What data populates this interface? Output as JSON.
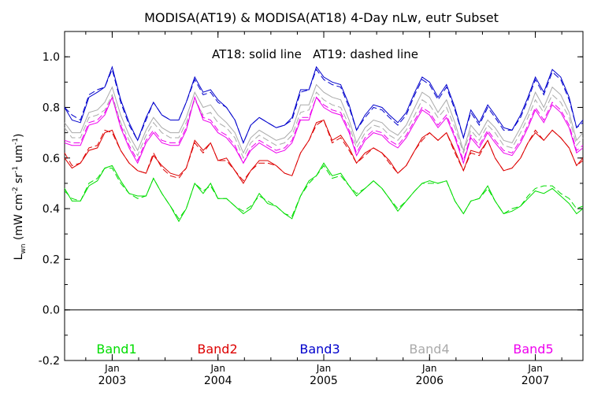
{
  "chart_data": {
    "type": "line",
    "title": "MODISA(AT19) & MODISA(AT18) 4-Day nLw, eutr Subset",
    "annotation": "AT18: solid line   AT19: dashed line",
    "ylabel": "L",
    "ylabel_sub": "wn",
    "ylabel_units": "(mW cm",
    "ylabel_units_2": "sr",
    "ylabel_units_3": "um",
    "ylabel_units_end": ")",
    "ylabel_exp": "-2",
    "ylabel_exp_2": "-1",
    "ylabel_exp_3": "-1",
    "ylim": [
      -0.2,
      1.1
    ],
    "yticks": [
      "-0.2",
      "0.0",
      "0.2",
      "0.4",
      "0.6",
      "0.8",
      "1.0"
    ],
    "xrange": [
      2002.55,
      2007.45
    ],
    "xticks": [
      {
        "x": 2003.0,
        "month": "Jan",
        "year": "2003"
      },
      {
        "x": 2004.0,
        "month": "Jan",
        "year": "2004"
      },
      {
        "x": 2005.0,
        "month": "Jan",
        "year": "2005"
      },
      {
        "x": 2006.0,
        "month": "Jan",
        "year": "2006"
      },
      {
        "x": 2007.0,
        "month": "Jan",
        "year": "2007"
      }
    ],
    "reference_line_y": 0.0,
    "x": [
      2002.55,
      2002.62,
      2002.7,
      2002.78,
      2002.86,
      2002.93,
      2003.0,
      2003.08,
      2003.16,
      2003.24,
      2003.32,
      2003.39,
      2003.47,
      2003.55,
      2003.63,
      2003.7,
      2003.78,
      2003.86,
      2003.93,
      2004.0,
      2004.08,
      2004.16,
      2004.24,
      2004.31,
      2004.39,
      2004.47,
      2004.55,
      2004.63,
      2004.7,
      2004.78,
      2004.86,
      2004.93,
      2005.0,
      2005.08,
      2005.16,
      2005.24,
      2005.31,
      2005.39,
      2005.47,
      2005.55,
      2005.62,
      2005.7,
      2005.78,
      2005.86,
      2005.93,
      2006.0,
      2006.08,
      2006.16,
      2006.24,
      2006.32,
      2006.39,
      2006.47,
      2006.55,
      2006.62,
      2006.7,
      2006.78,
      2006.86,
      2006.93,
      2007.0,
      2007.08,
      2007.16,
      2007.24,
      2007.32,
      2007.39,
      2007.45
    ],
    "series": [
      {
        "name": "Band1",
        "color": "#00dd00",
        "at18": [
          0.48,
          0.43,
          0.43,
          0.49,
          0.51,
          0.56,
          0.57,
          0.51,
          0.46,
          0.45,
          0.45,
          0.52,
          0.46,
          0.41,
          0.35,
          0.4,
          0.5,
          0.46,
          0.5,
          0.44,
          0.44,
          0.41,
          0.38,
          0.4,
          0.46,
          0.42,
          0.41,
          0.38,
          0.36,
          0.45,
          0.51,
          0.53,
          0.58,
          0.53,
          0.54,
          0.49,
          0.45,
          0.48,
          0.51,
          0.48,
          0.44,
          0.39,
          0.43,
          0.47,
          0.5,
          0.51,
          0.5,
          0.51,
          0.43,
          0.38,
          0.43,
          0.44,
          0.49,
          0.43,
          0.38,
          0.39,
          0.41,
          0.44,
          0.47,
          0.46,
          0.48,
          0.45,
          0.42,
          0.38,
          0.4
        ],
        "at19": [
          0.47,
          0.44,
          0.43,
          0.5,
          0.52,
          0.56,
          0.56,
          0.5,
          0.46,
          0.44,
          0.45,
          0.52,
          0.46,
          0.41,
          0.36,
          0.4,
          0.5,
          0.47,
          0.49,
          0.44,
          0.44,
          0.41,
          0.39,
          0.41,
          0.45,
          0.43,
          0.41,
          0.38,
          0.37,
          0.45,
          0.5,
          0.53,
          0.57,
          0.52,
          0.53,
          0.49,
          0.46,
          0.48,
          0.51,
          0.48,
          0.44,
          0.4,
          0.43,
          0.47,
          0.5,
          0.5,
          0.5,
          0.51,
          0.43,
          0.38,
          0.43,
          0.44,
          0.48,
          0.43,
          0.38,
          0.4,
          0.41,
          0.45,
          0.48,
          0.49,
          0.49,
          0.46,
          0.44,
          0.4,
          0.41
        ]
      },
      {
        "name": "Band2",
        "color": "#dd0000",
        "at18": [
          0.6,
          0.56,
          0.58,
          0.63,
          0.64,
          0.7,
          0.71,
          0.63,
          0.58,
          0.55,
          0.54,
          0.61,
          0.57,
          0.54,
          0.53,
          0.56,
          0.67,
          0.63,
          0.66,
          0.59,
          0.6,
          0.55,
          0.5,
          0.55,
          0.59,
          0.59,
          0.57,
          0.54,
          0.53,
          0.62,
          0.67,
          0.74,
          0.75,
          0.67,
          0.69,
          0.64,
          0.58,
          0.62,
          0.64,
          0.62,
          0.59,
          0.54,
          0.57,
          0.63,
          0.68,
          0.7,
          0.67,
          0.7,
          0.63,
          0.55,
          0.63,
          0.62,
          0.67,
          0.6,
          0.55,
          0.56,
          0.6,
          0.66,
          0.7,
          0.67,
          0.71,
          0.68,
          0.64,
          0.57,
          0.6
        ],
        "at19": [
          0.62,
          0.57,
          0.58,
          0.64,
          0.65,
          0.71,
          0.7,
          0.63,
          0.58,
          0.55,
          0.54,
          0.62,
          0.56,
          0.53,
          0.52,
          0.56,
          0.66,
          0.62,
          0.66,
          0.59,
          0.59,
          0.55,
          0.51,
          0.55,
          0.58,
          0.58,
          0.57,
          0.54,
          0.53,
          0.62,
          0.67,
          0.73,
          0.75,
          0.66,
          0.68,
          0.63,
          0.58,
          0.61,
          0.64,
          0.62,
          0.58,
          0.54,
          0.57,
          0.63,
          0.67,
          0.7,
          0.67,
          0.7,
          0.62,
          0.55,
          0.62,
          0.61,
          0.67,
          0.6,
          0.55,
          0.56,
          0.6,
          0.66,
          0.71,
          0.67,
          0.71,
          0.68,
          0.64,
          0.57,
          0.59
        ]
      },
      {
        "name": "Band3",
        "color": "#0000cc",
        "at18": [
          0.8,
          0.75,
          0.74,
          0.84,
          0.86,
          0.88,
          0.96,
          0.83,
          0.74,
          0.67,
          0.76,
          0.82,
          0.77,
          0.75,
          0.75,
          0.82,
          0.92,
          0.86,
          0.87,
          0.83,
          0.8,
          0.75,
          0.66,
          0.73,
          0.76,
          0.74,
          0.72,
          0.73,
          0.76,
          0.87,
          0.87,
          0.96,
          0.92,
          0.9,
          0.89,
          0.81,
          0.71,
          0.77,
          0.81,
          0.8,
          0.77,
          0.74,
          0.78,
          0.86,
          0.92,
          0.9,
          0.84,
          0.89,
          0.8,
          0.68,
          0.79,
          0.74,
          0.81,
          0.77,
          0.72,
          0.71,
          0.77,
          0.84,
          0.92,
          0.86,
          0.95,
          0.92,
          0.84,
          0.72,
          0.75
        ],
        "at19": [
          0.8,
          0.77,
          0.75,
          0.85,
          0.87,
          0.88,
          0.95,
          0.82,
          0.73,
          0.67,
          0.75,
          0.82,
          0.77,
          0.75,
          0.75,
          0.82,
          0.91,
          0.85,
          0.86,
          0.82,
          0.8,
          0.75,
          0.66,
          0.73,
          0.76,
          0.74,
          0.72,
          0.73,
          0.75,
          0.86,
          0.87,
          0.95,
          0.91,
          0.89,
          0.88,
          0.8,
          0.71,
          0.76,
          0.8,
          0.79,
          0.76,
          0.73,
          0.77,
          0.85,
          0.91,
          0.89,
          0.83,
          0.88,
          0.79,
          0.68,
          0.78,
          0.73,
          0.8,
          0.76,
          0.71,
          0.71,
          0.76,
          0.83,
          0.91,
          0.85,
          0.94,
          0.91,
          0.83,
          0.72,
          0.74
        ]
      },
      {
        "name": "Band4",
        "color": "#aaaaaa",
        "at18": [
          0.74,
          0.7,
          0.7,
          0.78,
          0.79,
          0.82,
          0.88,
          0.77,
          0.69,
          0.63,
          0.71,
          0.76,
          0.72,
          0.7,
          0.7,
          0.76,
          0.86,
          0.8,
          0.81,
          0.77,
          0.74,
          0.7,
          0.62,
          0.68,
          0.71,
          0.69,
          0.67,
          0.68,
          0.71,
          0.81,
          0.81,
          0.89,
          0.86,
          0.84,
          0.83,
          0.75,
          0.66,
          0.72,
          0.75,
          0.74,
          0.71,
          0.69,
          0.73,
          0.8,
          0.86,
          0.84,
          0.78,
          0.83,
          0.74,
          0.63,
          0.73,
          0.69,
          0.75,
          0.72,
          0.67,
          0.66,
          0.72,
          0.78,
          0.86,
          0.8,
          0.88,
          0.85,
          0.78,
          0.67,
          0.7
        ],
        "at19": [
          0.72,
          0.68,
          0.68,
          0.76,
          0.77,
          0.79,
          0.85,
          0.74,
          0.67,
          0.61,
          0.69,
          0.74,
          0.7,
          0.68,
          0.68,
          0.74,
          0.83,
          0.77,
          0.78,
          0.74,
          0.72,
          0.68,
          0.6,
          0.66,
          0.69,
          0.67,
          0.65,
          0.66,
          0.69,
          0.78,
          0.79,
          0.86,
          0.83,
          0.81,
          0.8,
          0.73,
          0.64,
          0.7,
          0.73,
          0.72,
          0.69,
          0.67,
          0.71,
          0.77,
          0.83,
          0.81,
          0.76,
          0.8,
          0.72,
          0.62,
          0.71,
          0.67,
          0.73,
          0.7,
          0.65,
          0.64,
          0.7,
          0.76,
          0.83,
          0.78,
          0.85,
          0.82,
          0.76,
          0.65,
          0.68
        ]
      },
      {
        "name": "Band5",
        "color": "#ee00ee",
        "at18": [
          0.66,
          0.65,
          0.65,
          0.73,
          0.74,
          0.77,
          0.84,
          0.72,
          0.64,
          0.58,
          0.66,
          0.7,
          0.66,
          0.65,
          0.65,
          0.71,
          0.84,
          0.75,
          0.74,
          0.7,
          0.68,
          0.64,
          0.58,
          0.63,
          0.66,
          0.64,
          0.62,
          0.63,
          0.66,
          0.75,
          0.75,
          0.84,
          0.8,
          0.78,
          0.77,
          0.7,
          0.61,
          0.67,
          0.7,
          0.69,
          0.66,
          0.64,
          0.68,
          0.74,
          0.79,
          0.77,
          0.72,
          0.76,
          0.68,
          0.58,
          0.68,
          0.64,
          0.7,
          0.66,
          0.62,
          0.61,
          0.66,
          0.72,
          0.79,
          0.74,
          0.81,
          0.78,
          0.72,
          0.62,
          0.64
        ],
        "at19": [
          0.67,
          0.66,
          0.66,
          0.74,
          0.75,
          0.78,
          0.84,
          0.73,
          0.65,
          0.59,
          0.67,
          0.71,
          0.67,
          0.66,
          0.66,
          0.72,
          0.84,
          0.76,
          0.75,
          0.71,
          0.69,
          0.65,
          0.58,
          0.64,
          0.67,
          0.65,
          0.63,
          0.64,
          0.67,
          0.76,
          0.76,
          0.84,
          0.81,
          0.79,
          0.78,
          0.71,
          0.62,
          0.68,
          0.71,
          0.7,
          0.67,
          0.65,
          0.69,
          0.75,
          0.8,
          0.78,
          0.73,
          0.77,
          0.69,
          0.59,
          0.69,
          0.65,
          0.71,
          0.67,
          0.63,
          0.62,
          0.67,
          0.73,
          0.8,
          0.75,
          0.82,
          0.79,
          0.73,
          0.63,
          0.65
        ]
      }
    ]
  }
}
